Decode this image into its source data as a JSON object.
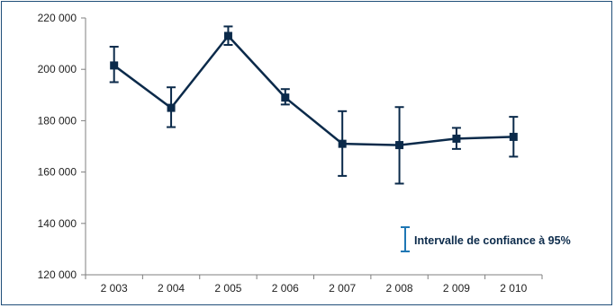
{
  "chart_data": {
    "type": "line",
    "categories": [
      "2 003",
      "2 004",
      "2 005",
      "2 006",
      "2 007",
      "2 008",
      "2 009",
      "2 010"
    ],
    "series": [
      {
        "values": [
          201500,
          185000,
          213000,
          189000,
          171000,
          170500,
          173000,
          173700
        ],
        "ci_lower": [
          195000,
          177500,
          209500,
          186300,
          158500,
          155500,
          169000,
          166000
        ],
        "ci_upper": [
          208800,
          193000,
          216700,
          192300,
          183700,
          185300,
          177200,
          181500
        ]
      }
    ],
    "ylim": [
      120000,
      220000
    ],
    "y_ticks": [
      120000,
      140000,
      160000,
      180000,
      200000,
      220000
    ],
    "y_tick_labels": [
      "120 000",
      "140 000",
      "160 000",
      "180 000",
      "200 000",
      "220 000"
    ],
    "legend": {
      "label": "Intervalle de confiance à 95%",
      "position": "bottom-right"
    },
    "grid": false,
    "colors": {
      "line": "#0b2a4a",
      "legend_bar": "#1f77b4",
      "axis": "#7f7f7f",
      "frame": "#1f4e79"
    }
  }
}
